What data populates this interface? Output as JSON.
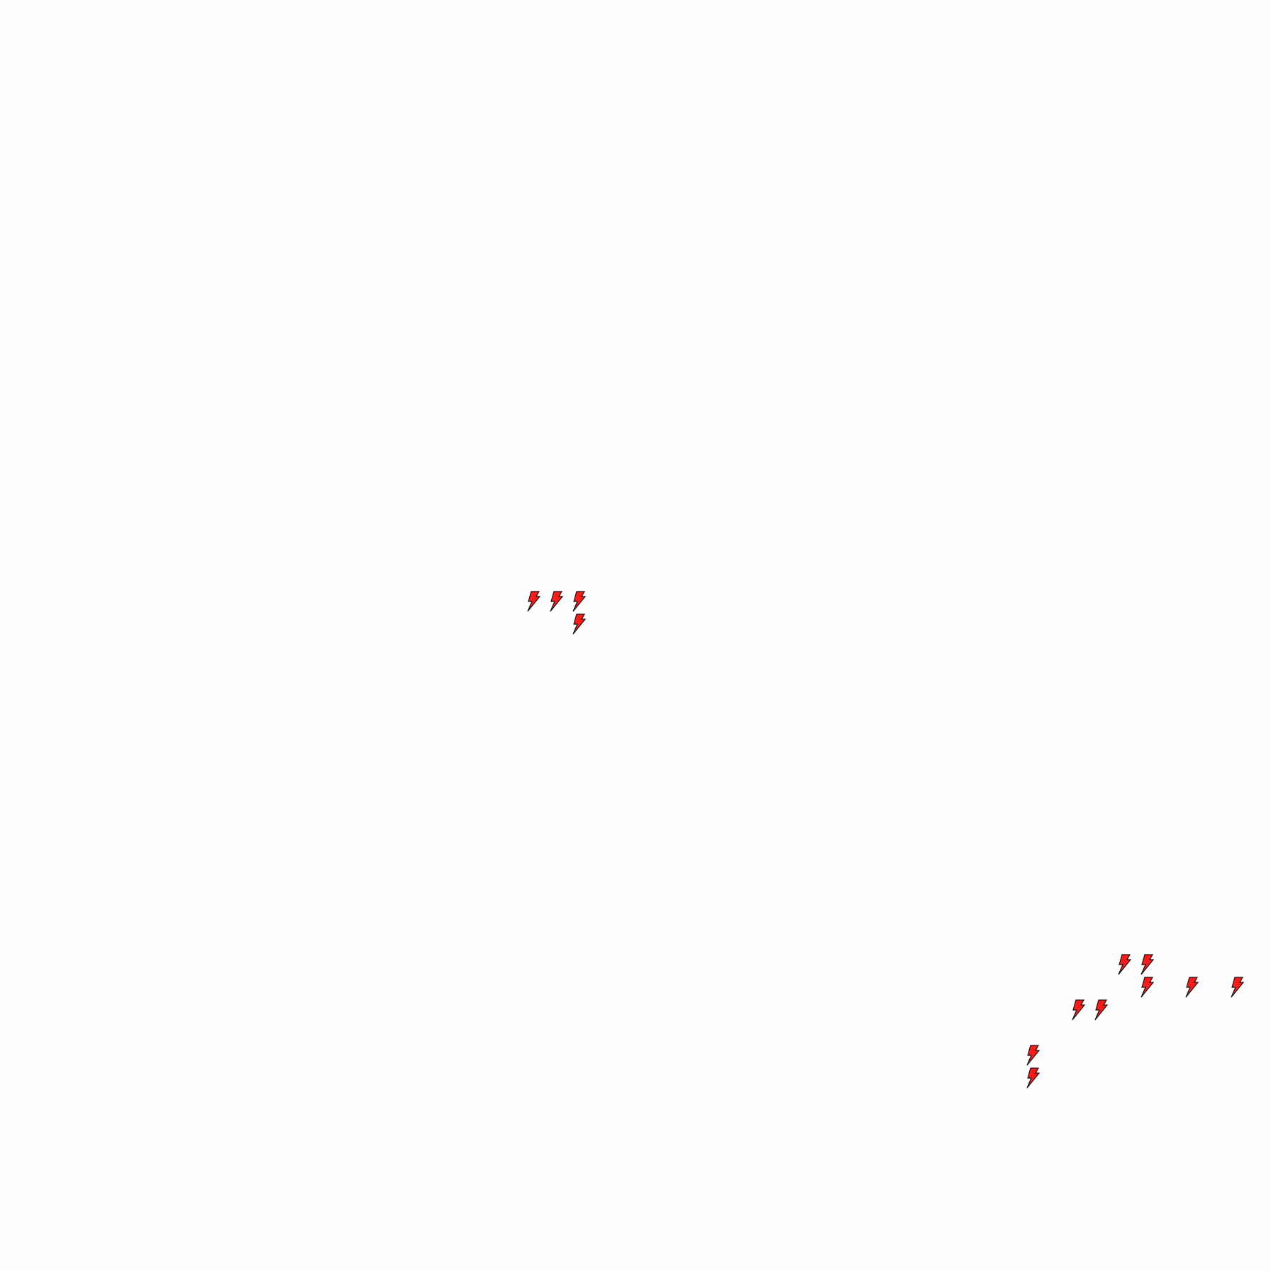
{
  "map": {
    "background_color": "#fefefe",
    "marker_icon": "lightning-bolt-icon",
    "marker_fill": "#ff1a1a",
    "marker_stroke": "#111111",
    "marker_count": 13
  }
}
